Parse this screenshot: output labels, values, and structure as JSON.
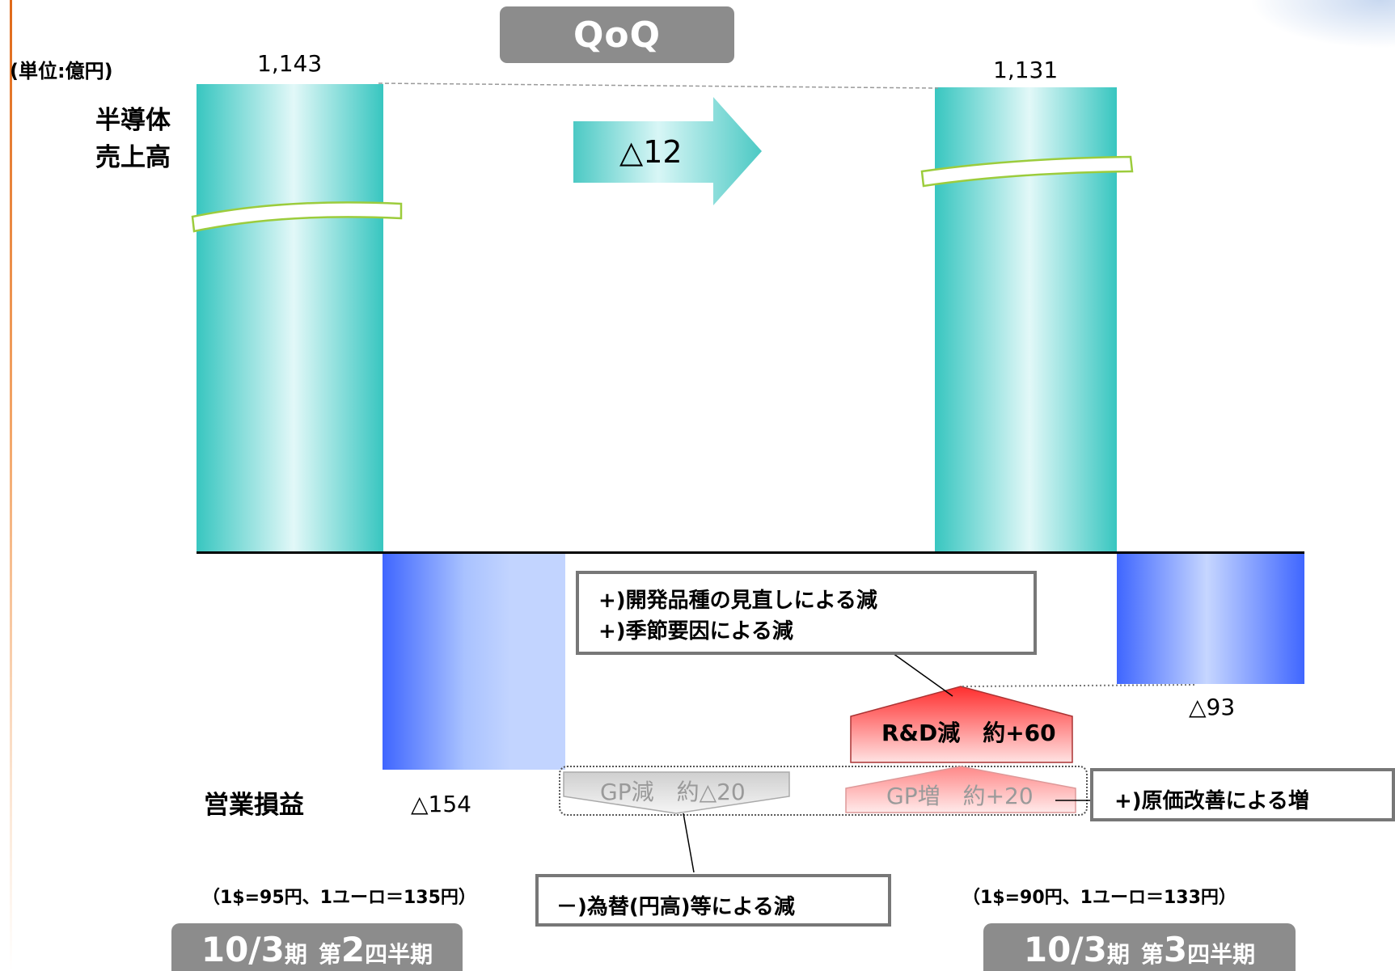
{
  "header": {
    "badge": "QoQ"
  },
  "unit_label": "(単位:億円)",
  "row_labels": {
    "sales_line1": "半導体",
    "sales_line2": "売上高",
    "operating": "営業損益"
  },
  "change_arrow": "△12",
  "callouts": {
    "rd_reasons_line1": "+)開発品種の見直しによる減",
    "rd_reasons_line2": "+)季節要因による減",
    "cost": "+)原価改善による増",
    "fx": "－)為替(円高)等による減"
  },
  "bridge": {
    "rd": "R&D減　約+60",
    "gp_down": "GP減　約△20",
    "gp_up": "GP増　約+20"
  },
  "periods": [
    {
      "year": "10/3",
      "suffix": "期",
      "q_prefix": "第",
      "q_num": "2",
      "q_suffix": "四半期",
      "rate": "（1$=95円、1ユーロ＝135円）"
    },
    {
      "year": "10/3",
      "suffix": "期",
      "q_prefix": "第",
      "q_num": "3",
      "q_suffix": "四半期",
      "rate": "（1$=90円、1ユーロ＝133円）"
    }
  ],
  "chart_data": {
    "type": "bar",
    "title": "",
    "unit": "億円",
    "categories": [
      "10/3期 第2四半期",
      "10/3期 第3四半期"
    ],
    "series": [
      {
        "name": "半導体売上高",
        "values": [
          1143,
          1131
        ],
        "labels": [
          "1,143",
          "1,131"
        ]
      },
      {
        "name": "営業損益",
        "values": [
          -154,
          -93
        ],
        "labels": [
          "△154",
          "△93"
        ]
      }
    ],
    "sales_axis_broken": true,
    "bridge_items": [
      {
        "label": "GP減",
        "value": -20
      },
      {
        "label": "R&D減",
        "value": 60
      },
      {
        "label": "GP増",
        "value": 20
      }
    ],
    "colors": {
      "sales": "#38c6c0",
      "operating": "#3f66ff",
      "rd": "#ff3b3b",
      "badge": "#8c8c8c"
    }
  }
}
